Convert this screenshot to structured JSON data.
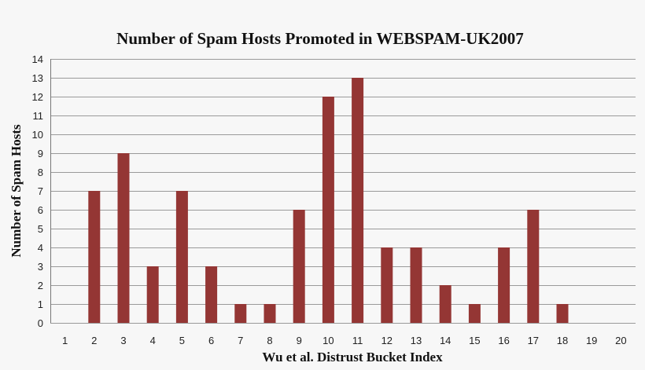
{
  "chart_data": {
    "type": "bar",
    "title": "Number of Spam Hosts Promoted in WEBSPAM-UK2007",
    "xlabel": "Wu et al. Distrust Bucket Index",
    "ylabel": "Number of Spam Hosts",
    "categories": [
      "1",
      "2",
      "3",
      "4",
      "5",
      "6",
      "7",
      "8",
      "9",
      "10",
      "11",
      "12",
      "13",
      "14",
      "15",
      "16",
      "17",
      "18",
      "19",
      "20"
    ],
    "values": [
      0,
      7,
      9,
      3,
      7,
      3,
      1,
      1,
      6,
      12,
      13,
      4,
      4,
      2,
      1,
      4,
      6,
      1,
      0,
      0
    ],
    "ylim": [
      0,
      14
    ],
    "yticks": [
      0,
      1,
      2,
      3,
      4,
      5,
      6,
      7,
      8,
      9,
      10,
      11,
      12,
      13,
      14
    ],
    "grid": true,
    "legend": "none",
    "bar_color": "#943634"
  }
}
